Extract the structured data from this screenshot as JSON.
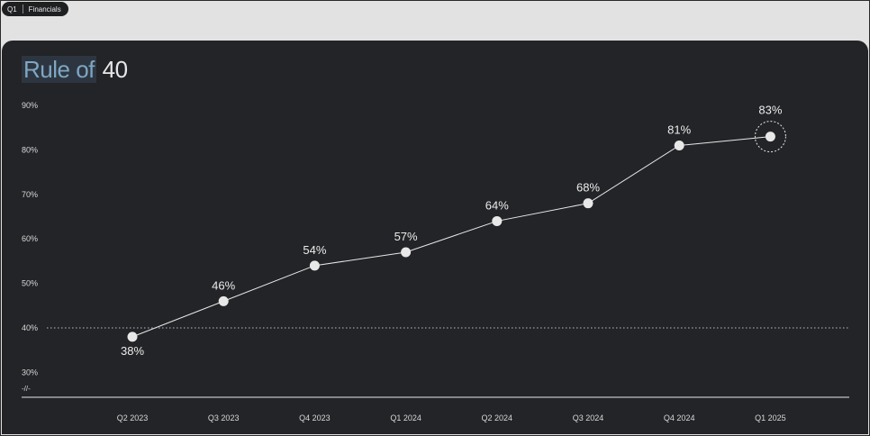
{
  "tag": {
    "quarter": "Q1",
    "section": "Financials"
  },
  "chart_data": {
    "type": "line",
    "title_highlight": "Rule of",
    "title_rest": "40",
    "categories": [
      "Q2 2023",
      "Q3 2023",
      "Q4 2023",
      "Q1 2024",
      "Q2 2024",
      "Q3 2024",
      "Q4 2024",
      "Q1 2025"
    ],
    "values": [
      38,
      46,
      54,
      57,
      64,
      68,
      81,
      83
    ],
    "value_labels": [
      "38%",
      "46%",
      "54%",
      "57%",
      "64%",
      "68%",
      "81%",
      "83%"
    ],
    "y_ticks": [
      {
        "value": 30,
        "label": "30%"
      },
      {
        "value": 40,
        "label": "40%"
      },
      {
        "value": 50,
        "label": "50%"
      },
      {
        "value": 60,
        "label": "60%"
      },
      {
        "value": 70,
        "label": "70%"
      },
      {
        "value": 80,
        "label": "80%"
      },
      {
        "value": 90,
        "label": "90%"
      }
    ],
    "axis_break_label": "-//-",
    "ylim": [
      30,
      90
    ],
    "reference_line": 40,
    "highlighted_point": "Q1 2025",
    "grid": false,
    "colors": {
      "background": "#232427",
      "line": "#e8e8e8",
      "reference": "#bdbdbd",
      "highlight": "#7fa6c4"
    }
  }
}
